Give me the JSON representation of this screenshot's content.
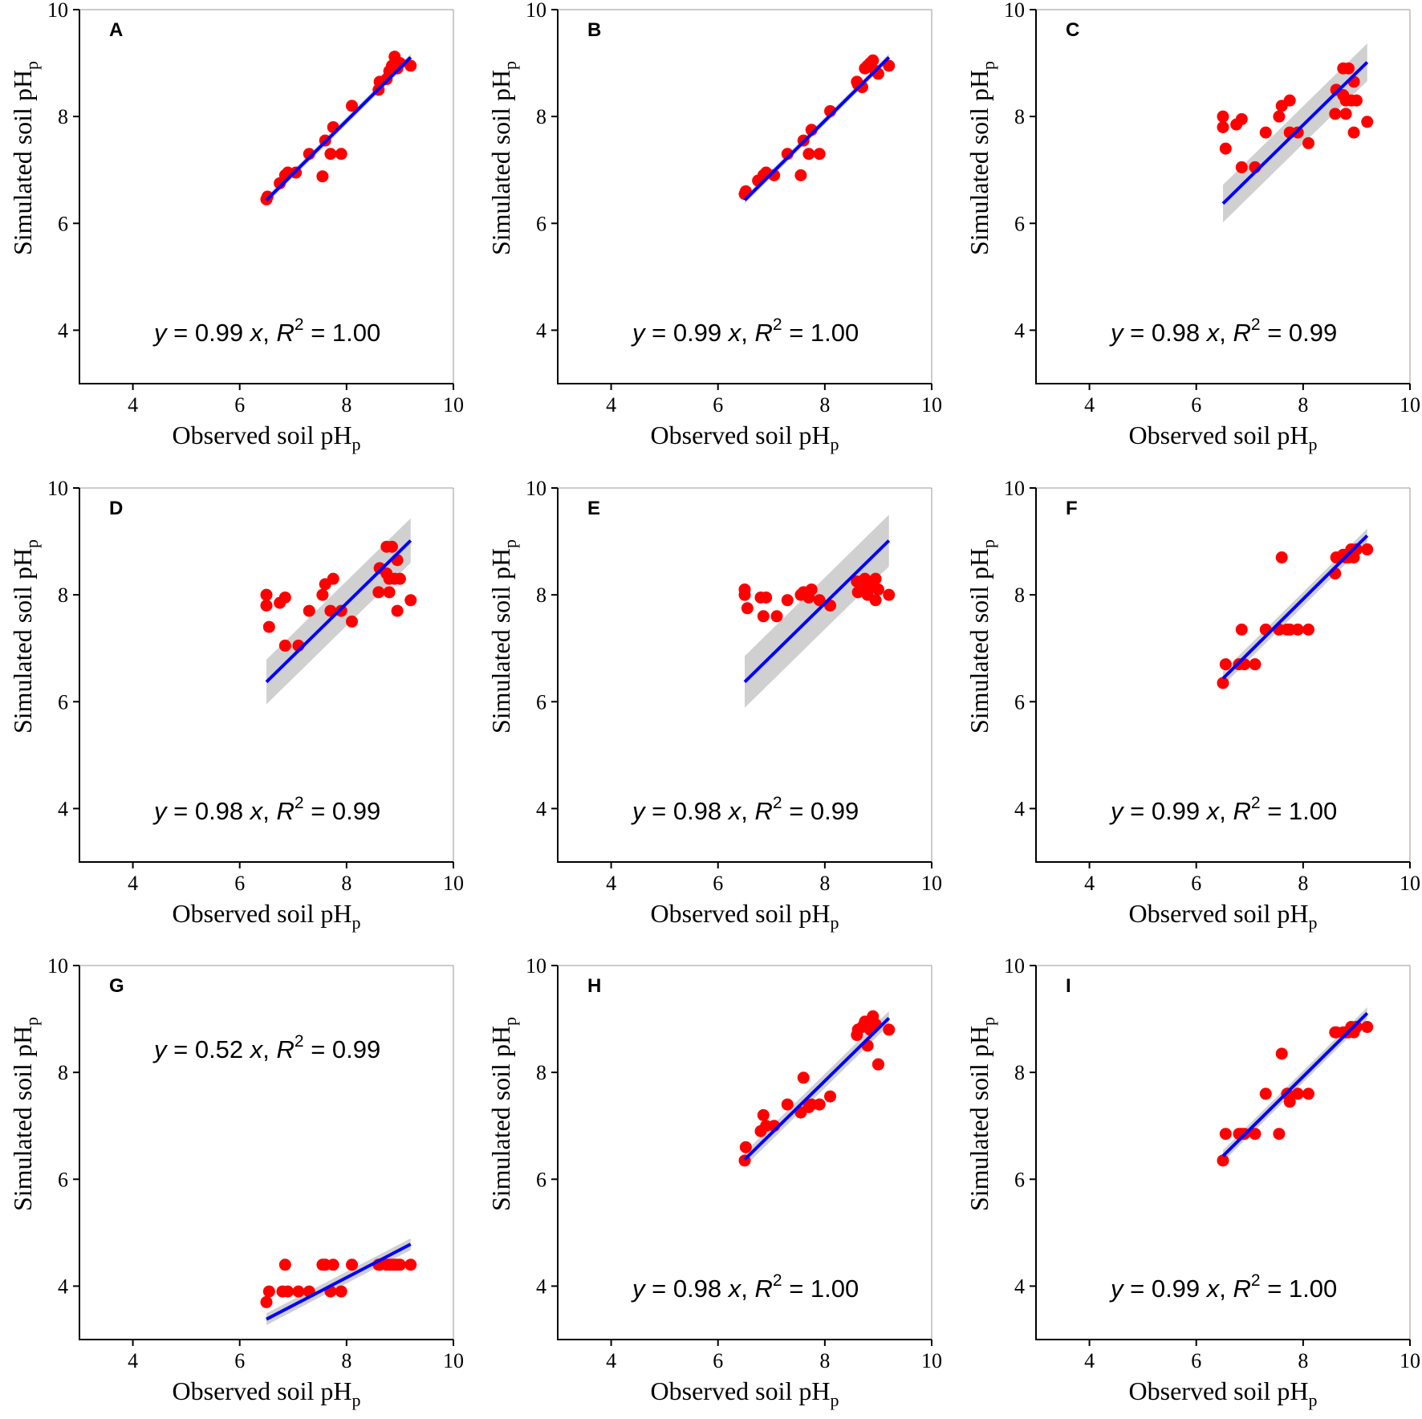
{
  "figure": {
    "layout": "3x3 grid of scatter panels"
  },
  "colors": {
    "points": "#ff0000",
    "fit_line": "#0000ff",
    "ci_band": "#c8c8c8",
    "axes": "#000000"
  },
  "chart_data": [
    {
      "type": "scatter",
      "letter": "A",
      "equation": {
        "pre": "y",
        "mid": " = 0.99 ",
        "x": "x",
        "sep": ", ",
        "r": "R",
        "sup": "2",
        "post": " = 1.00"
      },
      "equation_position": "bottom",
      "slope": 0.99,
      "r2": 1.0,
      "band": 0.03,
      "fit_range": [
        6.5,
        9.2
      ],
      "xlabel": "Observed soil pH",
      "xlabel_sub": "p",
      "ylabel": "Simulated soil pH",
      "ylabel_sub": "p",
      "xlim": [
        3,
        10
      ],
      "ylim": [
        3,
        10
      ],
      "xticks": [
        "4",
        "6",
        "8",
        "10"
      ],
      "yticks": [
        "4",
        "6",
        "8",
        "10"
      ],
      "x": [
        6.5,
        6.52,
        6.75,
        6.85,
        6.9,
        7.05,
        7.3,
        7.55,
        7.6,
        7.7,
        7.75,
        7.9,
        8.1,
        8.6,
        8.62,
        8.75,
        8.8,
        8.85,
        8.9,
        8.95,
        9.0,
        9.2
      ],
      "y": [
        6.45,
        6.5,
        6.75,
        6.9,
        6.95,
        6.95,
        7.3,
        6.88,
        7.55,
        7.3,
        7.8,
        7.3,
        8.2,
        8.5,
        8.65,
        8.7,
        8.85,
        8.95,
        9.12,
        8.9,
        9.0,
        8.95
      ]
    },
    {
      "type": "scatter",
      "letter": "B",
      "equation": {
        "pre": "y",
        "mid": " = 0.99 ",
        "x": "x",
        "sep": ", ",
        "r": "R",
        "sup": "2",
        "post": " = 1.00"
      },
      "equation_position": "bottom",
      "slope": 0.99,
      "r2": 1.0,
      "band": 0.03,
      "fit_range": [
        6.5,
        9.2
      ],
      "xlabel": "Observed soil pH",
      "xlabel_sub": "p",
      "ylabel": "Simulated soil pH",
      "ylabel_sub": "p",
      "xlim": [
        3,
        10
      ],
      "ylim": [
        3,
        10
      ],
      "xticks": [
        "4",
        "6",
        "8",
        "10"
      ],
      "yticks": [
        "4",
        "6",
        "8",
        "10"
      ],
      "x": [
        6.5,
        6.52,
        6.75,
        6.85,
        6.9,
        7.05,
        7.3,
        7.55,
        7.6,
        7.7,
        7.75,
        7.9,
        8.1,
        8.6,
        8.62,
        8.7,
        8.75,
        8.8,
        8.85,
        8.9,
        8.95,
        9.0,
        9.2
      ],
      "y": [
        6.55,
        6.6,
        6.8,
        6.9,
        6.95,
        6.9,
        7.3,
        6.9,
        7.55,
        7.3,
        7.75,
        7.3,
        8.1,
        8.65,
        8.6,
        8.55,
        8.9,
        8.95,
        9.0,
        9.05,
        8.85,
        8.8,
        8.95
      ]
    },
    {
      "type": "scatter",
      "letter": "C",
      "equation": {
        "pre": "y",
        "mid": " = 0.98 ",
        "x": "x",
        "sep": ", ",
        "r": "R",
        "sup": "2",
        "post": " = 0.99"
      },
      "equation_position": "bottom",
      "slope": 0.98,
      "r2": 0.99,
      "band": 0.16,
      "fit_range": [
        6.5,
        9.2
      ],
      "xlabel": "Observed soil pH",
      "xlabel_sub": "p",
      "ylabel": "Simulated soil pH",
      "ylabel_sub": "p",
      "xlim": [
        3,
        10
      ],
      "ylim": [
        3,
        10
      ],
      "xticks": [
        "4",
        "6",
        "8",
        "10"
      ],
      "yticks": [
        "4",
        "6",
        "8",
        "10"
      ],
      "x": [
        6.5,
        6.5,
        6.55,
        6.75,
        6.85,
        6.85,
        7.1,
        7.3,
        7.55,
        7.6,
        7.75,
        7.75,
        7.9,
        8.1,
        8.6,
        8.62,
        8.75,
        8.75,
        8.8,
        8.8,
        8.85,
        8.9,
        8.95,
        8.95,
        9.0,
        9.2
      ],
      "y": [
        8.0,
        7.8,
        7.4,
        7.85,
        7.95,
        7.05,
        7.05,
        7.7,
        8.0,
        8.2,
        8.3,
        7.7,
        7.7,
        7.5,
        8.05,
        8.5,
        8.9,
        8.4,
        8.3,
        8.05,
        8.9,
        8.3,
        8.65,
        7.7,
        8.3,
        7.9
      ]
    },
    {
      "type": "scatter",
      "letter": "D",
      "equation": {
        "pre": "y",
        "mid": " = 0.98 ",
        "x": "x",
        "sep": ", ",
        "r": "R",
        "sup": "2",
        "post": " = 0.99"
      },
      "equation_position": "bottom",
      "slope": 0.98,
      "r2": 0.99,
      "band": 0.19,
      "fit_range": [
        6.5,
        9.2
      ],
      "xlabel": "Observed soil pH",
      "xlabel_sub": "p",
      "ylabel": "Simulated soil pH",
      "ylabel_sub": "p",
      "xlim": [
        3,
        10
      ],
      "ylim": [
        3,
        10
      ],
      "xticks": [
        "4",
        "6",
        "8",
        "10"
      ],
      "yticks": [
        "4",
        "6",
        "8",
        "10"
      ],
      "x": [
        6.5,
        6.5,
        6.55,
        6.75,
        6.85,
        6.85,
        7.1,
        7.3,
        7.55,
        7.6,
        7.7,
        7.75,
        7.9,
        8.1,
        8.6,
        8.62,
        8.75,
        8.75,
        8.8,
        8.8,
        8.85,
        8.9,
        8.95,
        8.95,
        9.0,
        9.2
      ],
      "y": [
        8.0,
        7.8,
        7.4,
        7.85,
        7.95,
        7.05,
        7.05,
        7.7,
        8.0,
        8.2,
        7.7,
        8.3,
        7.7,
        7.5,
        8.05,
        8.5,
        8.9,
        8.4,
        8.3,
        8.05,
        8.9,
        8.3,
        8.65,
        7.7,
        8.3,
        7.9
      ]
    },
    {
      "type": "scatter",
      "letter": "E",
      "equation": {
        "pre": "y",
        "mid": " = 0.98 ",
        "x": "x",
        "sep": ", ",
        "r": "R",
        "sup": "2",
        "post": " = 0.99"
      },
      "equation_position": "bottom",
      "slope": 0.98,
      "r2": 0.99,
      "band": 0.22,
      "fit_range": [
        6.5,
        9.2
      ],
      "xlabel": "Observed soil pH",
      "xlabel_sub": "p",
      "ylabel": "Simulated soil pH",
      "ylabel_sub": "p",
      "xlim": [
        3,
        10
      ],
      "ylim": [
        3,
        10
      ],
      "xticks": [
        "4",
        "6",
        "8",
        "10"
      ],
      "yticks": [
        "4",
        "6",
        "8",
        "10"
      ],
      "x": [
        6.5,
        6.5,
        6.55,
        6.8,
        6.85,
        6.9,
        7.1,
        7.3,
        7.55,
        7.6,
        7.7,
        7.75,
        7.9,
        8.1,
        8.6,
        8.62,
        8.7,
        8.75,
        8.8,
        8.85,
        8.9,
        8.95,
        8.95,
        9.0,
        9.2
      ],
      "y": [
        8.1,
        8.0,
        7.75,
        7.95,
        7.6,
        7.95,
        7.6,
        7.9,
        8.0,
        8.05,
        7.95,
        8.1,
        7.9,
        7.8,
        8.25,
        8.05,
        8.1,
        8.3,
        8.0,
        8.15,
        8.25,
        8.3,
        7.9,
        8.1,
        8.0
      ]
    },
    {
      "type": "scatter",
      "letter": "F",
      "equation": {
        "pre": "y",
        "mid": " = 0.99 ",
        "x": "x",
        "sep": ", ",
        "r": "R",
        "sup": "2",
        "post": " = 1.00"
      },
      "equation_position": "bottom",
      "slope": 0.99,
      "r2": 1.0,
      "band": 0.06,
      "fit_range": [
        6.5,
        9.2
      ],
      "xlabel": "Observed soil pH",
      "xlabel_sub": "p",
      "ylabel": "Simulated soil pH",
      "ylabel_sub": "p",
      "xlim": [
        3,
        10
      ],
      "ylim": [
        3,
        10
      ],
      "xticks": [
        "4",
        "6",
        "8",
        "10"
      ],
      "yticks": [
        "4",
        "6",
        "8",
        "10"
      ],
      "x": [
        6.5,
        6.55,
        6.8,
        6.85,
        6.9,
        7.1,
        7.3,
        7.55,
        7.6,
        7.7,
        7.75,
        7.9,
        8.1,
        8.6,
        8.62,
        8.75,
        8.8,
        8.85,
        8.9,
        8.95,
        9.0,
        9.2
      ],
      "y": [
        6.35,
        6.7,
        6.7,
        7.35,
        6.7,
        6.7,
        7.35,
        7.35,
        8.7,
        7.35,
        7.35,
        7.35,
        7.35,
        8.4,
        8.7,
        8.75,
        8.7,
        8.7,
        8.85,
        8.7,
        8.85,
        8.85
      ]
    },
    {
      "type": "scatter",
      "letter": "G",
      "equation": {
        "pre": "y",
        "mid": " = 0.52 ",
        "x": "x",
        "sep": ", ",
        "r": "R",
        "sup": "2",
        "post": " = 0.99"
      },
      "equation_position": "top",
      "slope": 0.52,
      "r2": 0.99,
      "band": 0.05,
      "fit_range": [
        6.5,
        9.2
      ],
      "xlabel": "Observed soil pH",
      "xlabel_sub": "p",
      "ylabel": "Simulated soil pH",
      "ylabel_sub": "p",
      "xlim": [
        3,
        10
      ],
      "ylim": [
        3,
        10
      ],
      "xticks": [
        "4",
        "6",
        "8",
        "10"
      ],
      "yticks": [
        "4",
        "6",
        "8",
        "10"
      ],
      "x": [
        6.5,
        6.55,
        6.8,
        6.85,
        6.9,
        7.1,
        7.3,
        7.55,
        7.6,
        7.7,
        7.75,
        7.9,
        8.1,
        8.6,
        8.62,
        8.75,
        8.8,
        8.85,
        8.9,
        8.95,
        9.0,
        9.2
      ],
      "y": [
        3.7,
        3.9,
        3.9,
        4.4,
        3.9,
        3.9,
        3.9,
        4.4,
        4.4,
        3.9,
        4.4,
        3.9,
        4.4,
        4.4,
        4.4,
        4.4,
        4.4,
        4.4,
        4.4,
        4.4,
        4.4,
        4.4
      ]
    },
    {
      "type": "scatter",
      "letter": "H",
      "equation": {
        "pre": "y",
        "mid": " = 0.98 ",
        "x": "x",
        "sep": ", ",
        "r": "R",
        "sup": "2",
        "post": " = 1.00"
      },
      "equation_position": "bottom",
      "slope": 0.98,
      "r2": 1.0,
      "band": 0.06,
      "fit_range": [
        6.5,
        9.2
      ],
      "xlabel": "Observed soil pH",
      "xlabel_sub": "p",
      "ylabel": "Simulated soil pH",
      "ylabel_sub": "p",
      "xlim": [
        3,
        10
      ],
      "ylim": [
        3,
        10
      ],
      "xticks": [
        "4",
        "6",
        "8",
        "10"
      ],
      "yticks": [
        "4",
        "6",
        "8",
        "10"
      ],
      "x": [
        6.5,
        6.52,
        6.8,
        6.85,
        6.9,
        7.05,
        7.3,
        7.55,
        7.6,
        7.7,
        7.75,
        7.9,
        8.1,
        8.6,
        8.62,
        8.7,
        8.75,
        8.8,
        8.85,
        8.9,
        8.95,
        9.0,
        9.0,
        9.2
      ],
      "y": [
        6.35,
        6.6,
        6.9,
        7.2,
        7.0,
        7.0,
        7.4,
        7.25,
        7.9,
        7.35,
        7.4,
        7.4,
        7.55,
        8.7,
        8.8,
        8.85,
        8.95,
        8.5,
        8.8,
        9.05,
        8.9,
        8.15,
        8.15,
        8.8
      ]
    },
    {
      "type": "scatter",
      "letter": "I",
      "equation": {
        "pre": "y",
        "mid": " = 0.99 ",
        "x": "x",
        "sep": ", ",
        "r": "R",
        "sup": "2",
        "post": " = 1.00"
      },
      "equation_position": "bottom",
      "slope": 0.99,
      "r2": 1.0,
      "band": 0.05,
      "fit_range": [
        6.5,
        9.2
      ],
      "xlabel": "Observed soil pH",
      "xlabel_sub": "p",
      "ylabel": "Simulated soil pH",
      "ylabel_sub": "p",
      "xlim": [
        3,
        10
      ],
      "ylim": [
        3,
        10
      ],
      "xticks": [
        "4",
        "6",
        "8",
        "10"
      ],
      "yticks": [
        "4",
        "6",
        "8",
        "10"
      ],
      "x": [
        6.5,
        6.55,
        6.8,
        6.85,
        6.9,
        7.1,
        7.3,
        7.55,
        7.6,
        7.7,
        7.75,
        7.9,
        8.1,
        8.6,
        8.62,
        8.75,
        8.8,
        8.85,
        8.9,
        8.95,
        9.0,
        9.2
      ],
      "y": [
        6.35,
        6.85,
        6.85,
        6.85,
        6.85,
        6.85,
        7.6,
        6.85,
        8.35,
        7.6,
        7.45,
        7.6,
        7.6,
        8.75,
        8.75,
        8.75,
        8.75,
        8.75,
        8.85,
        8.75,
        8.85,
        8.85
      ]
    }
  ]
}
